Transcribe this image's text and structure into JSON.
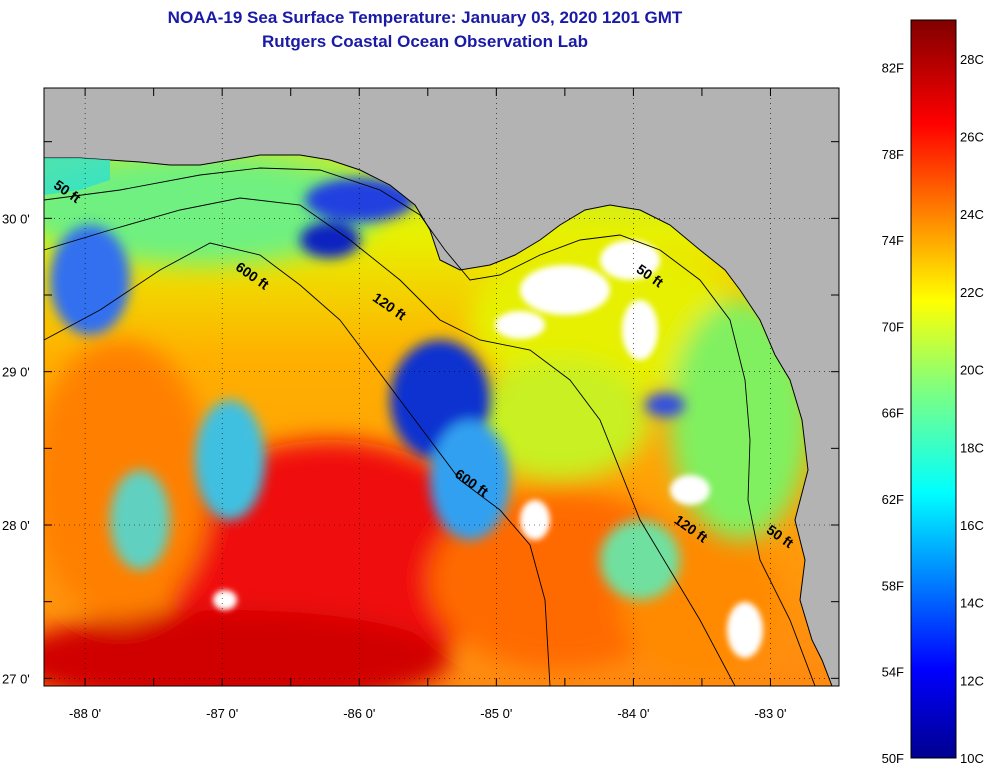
{
  "header": {
    "title": "NOAA-19 Sea Surface Temperature:  January 03, 2020 1201 GMT",
    "subtitle": "Rutgers Coastal Ocean Observation Lab"
  },
  "map": {
    "lon_labels": [
      "-88 0'",
      "-87 0'",
      "-86 0'",
      "-85 0'",
      "-84 0'",
      "-83 0'"
    ],
    "lat_labels": [
      "30 0'",
      "29 0'",
      "28 0'",
      "27 0'"
    ],
    "lon_range": [
      -88.3,
      -82.5
    ],
    "lat_range": [
      26.95,
      30.85
    ],
    "isobath_labels": [
      {
        "text": "50 ft",
        "lon": -88.15,
        "lat": 30.15
      },
      {
        "text": "600 ft",
        "lon": -86.8,
        "lat": 29.6
      },
      {
        "text": "120 ft",
        "lon": -85.8,
        "lat": 29.4
      },
      {
        "text": "50 ft",
        "lon": -83.9,
        "lat": 29.6
      },
      {
        "text": "600 ft",
        "lon": -85.2,
        "lat": 28.25
      },
      {
        "text": "120 ft",
        "lon": -83.6,
        "lat": 27.95
      },
      {
        "text": "50 ft",
        "lon": -82.95,
        "lat": 27.9
      }
    ],
    "land_color": "#b3b3b3",
    "no_data_color": "#ffffff",
    "coastline_color": "#000000"
  },
  "colorbar": {
    "celsius_labels": [
      "28C",
      "26C",
      "24C",
      "22C",
      "20C",
      "18C",
      "16C",
      "14C",
      "12C",
      "10C"
    ],
    "fahrenheit_labels": [
      "82F",
      "78F",
      "74F",
      "70F",
      "66F",
      "62F",
      "58F",
      "54F",
      "50F"
    ],
    "range_c": [
      10,
      29
    ]
  }
}
